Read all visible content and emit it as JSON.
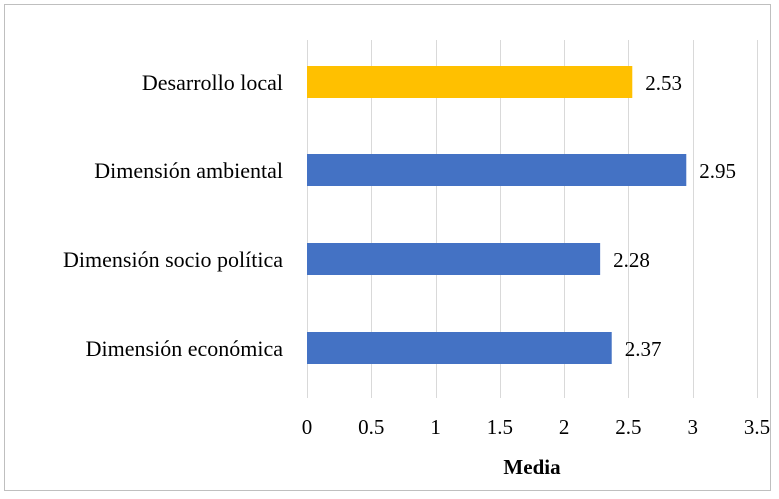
{
  "chart_data": {
    "type": "bar",
    "orientation": "horizontal",
    "categories": [
      "Desarrollo local",
      "Dimensión ambiental",
      "Dimensión socio política",
      "Dimensión económica"
    ],
    "values": [
      2.53,
      2.95,
      2.28,
      2.37
    ],
    "data_labels": [
      "2.53",
      "2.95",
      "2.28",
      "2.37"
    ],
    "colors": [
      "#FFC000",
      "#4472C4",
      "#4472C4",
      "#4472C4"
    ],
    "xlabel": "Media",
    "ylabel": "",
    "title": "",
    "xlim": [
      0,
      3.5
    ],
    "x_ticks": [
      0,
      0.5,
      1,
      1.5,
      2,
      2.5,
      3,
      3.5
    ],
    "x_tick_labels": [
      "0",
      "0.5",
      "1",
      "1.5",
      "2",
      "2.5",
      "3",
      "3.5"
    ],
    "grid": true,
    "legend": "none"
  }
}
